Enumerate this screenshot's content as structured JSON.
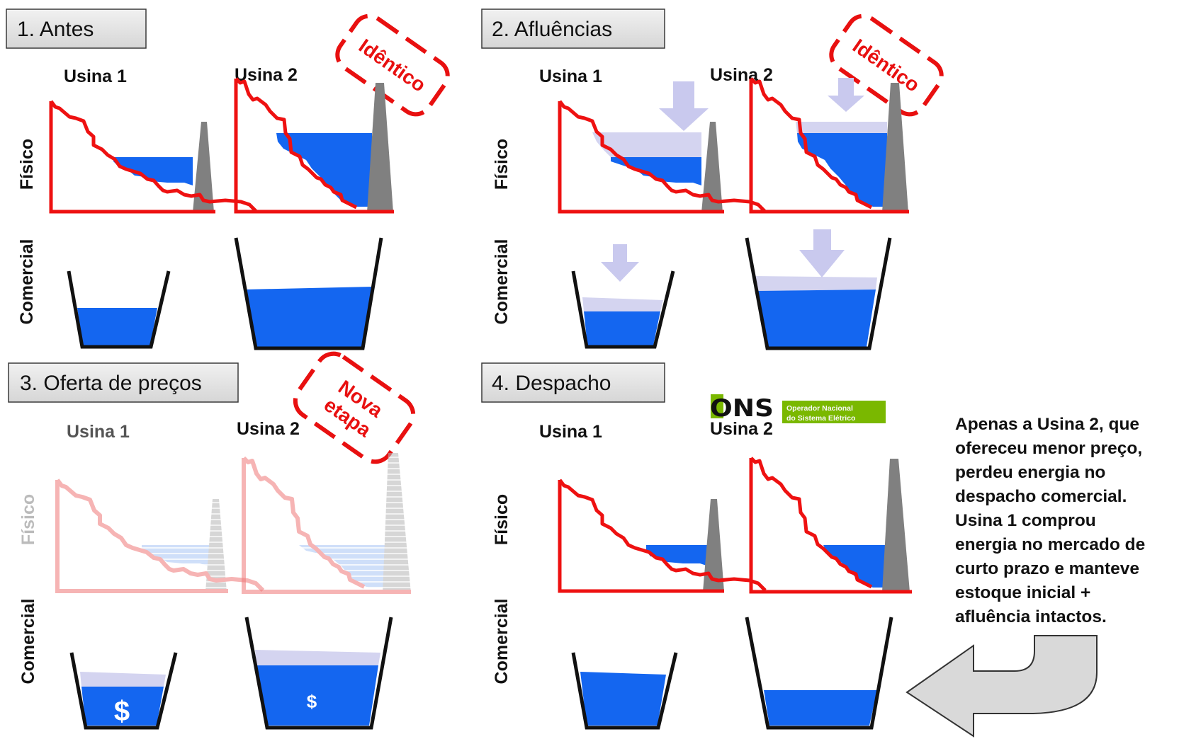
{
  "steps": {
    "s1": {
      "label": "1. Antes",
      "stamp": "Idêntico"
    },
    "s2": {
      "label": "2. Afluências",
      "stamp": "Idêntico"
    },
    "s3": {
      "label": "3. Oferta de preços",
      "stamp_line1": "Nova",
      "stamp_line2": "etapa"
    },
    "s4": {
      "label": "4. Despacho"
    }
  },
  "plants": {
    "usina1": "Usina 1",
    "usina2": "Usina 2"
  },
  "rows": {
    "fisico": "Físico",
    "comercial": "Comercial"
  },
  "currency_symbol": "$",
  "ons_logo": {
    "wordmark": "ONS",
    "line1": "Operador Nacional",
    "line2": "do Sistema Elétrico"
  },
  "note_lines": [
    "Apenas a Usina 2, que",
    "ofereceu menor preço,",
    "perdeu energia no",
    "despacho comercial.",
    "Usina 1 comprou",
    "energia no mercado de",
    "curto prazo e manteve",
    "estoque inicial +",
    "afluência intactos."
  ],
  "colors": {
    "water": "#1466f0",
    "inflow": "#d4d4f0",
    "slope": "#ee1111",
    "dam": "#808080",
    "stamp": "#e81010",
    "box_fill": "#e2e2e2",
    "ons_green": "#7ab800",
    "arrow_fill": "#d9d9d9"
  }
}
